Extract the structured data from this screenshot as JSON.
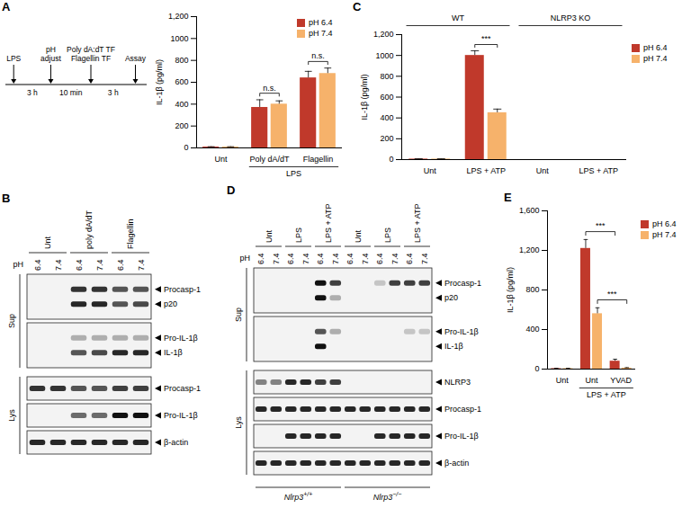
{
  "chart_data": [
    {
      "panel": "A",
      "type": "bar",
      "y_label": "IL-1β (pg/ml)",
      "protocol": {
        "events": [
          [
            "LPS"
          ],
          [
            "pH",
            "adjust"
          ],
          [
            "Poly dA:dT TF",
            "Flagellin TF"
          ],
          [
            "Assay"
          ]
        ],
        "intervals": [
          "3 h",
          "10 min",
          "3 h"
        ]
      },
      "categories": [
        "Unt",
        "Poly dA/dT",
        "Flagellin"
      ],
      "series": [
        {
          "name": "pH 6.4",
          "color": "#c0392b",
          "values": [
            8,
            370,
            640
          ],
          "errors": [
            3,
            70,
            60
          ]
        },
        {
          "name": "pH 7.4",
          "color": "#f6b26b",
          "values": [
            8,
            400,
            680
          ],
          "errors": [
            3,
            30,
            50
          ]
        }
      ],
      "ylim": [
        0,
        1200
      ],
      "yticks": [
        0,
        200,
        400,
        600,
        800,
        1000,
        {
          "value": 1200,
          "label": "1,200"
        }
      ],
      "groups": [
        {
          "label": "LPS",
          "categories": [
            1,
            2
          ],
          "position": "bottom"
        }
      ],
      "annotations": [
        {
          "text": "n.s.",
          "from": [
            1,
            0
          ],
          "to": [
            1,
            1
          ]
        },
        {
          "text": "n.s.",
          "from": [
            2,
            0
          ],
          "to": [
            2,
            1
          ]
        }
      ],
      "legend": "top-right"
    },
    {
      "panel": "C",
      "type": "bar",
      "y_label": "IL-1β (pg/ml)",
      "categories": [
        "Unt",
        "LPS + ATP",
        "Unt",
        "LPS + ATP"
      ],
      "series": [
        {
          "name": "pH 6.4",
          "color": "#c0392b",
          "values": [
            5,
            1000,
            0,
            0
          ],
          "errors": [
            3,
            45,
            0,
            0
          ]
        },
        {
          "name": "pH 7.4",
          "color": "#f6b26b",
          "values": [
            5,
            450,
            0,
            0
          ],
          "errors": [
            3,
            35,
            0,
            0
          ]
        }
      ],
      "ylim": [
        0,
        1200
      ],
      "yticks": [
        0,
        200,
        400,
        600,
        800,
        1000,
        {
          "value": 1200,
          "label": "1,200"
        }
      ],
      "groups": [
        {
          "label": "WT",
          "categories": [
            0,
            1
          ],
          "position": "top"
        },
        {
          "label": "NLRP3 KO",
          "categories": [
            2,
            3
          ],
          "position": "top"
        }
      ],
      "annotations": [
        {
          "text": "***",
          "from": [
            1,
            0
          ],
          "to": [
            1,
            1
          ]
        }
      ],
      "legend": "right"
    },
    {
      "panel": "E",
      "type": "bar",
      "y_label": "IL-1β (pg/ml)",
      "categories": [
        "Unt",
        "Unt",
        "YVAD"
      ],
      "series": [
        {
          "name": "pH 6.4",
          "color": "#c0392b",
          "values": [
            5,
            1220,
            80
          ],
          "errors": [
            3,
            90,
            20
          ]
        },
        {
          "name": "pH 7.4",
          "color": "#f6b26b",
          "values": [
            5,
            560,
            10
          ],
          "errors": [
            3,
            60,
            5
          ]
        }
      ],
      "ylim": [
        0,
        1600
      ],
      "yticks": [
        0,
        400,
        800,
        {
          "value": 1200,
          "label": "1,200"
        },
        {
          "value": 1600,
          "label": "1,600"
        }
      ],
      "groups": [
        {
          "label": "LPS + ATP",
          "categories": [
            1,
            2
          ],
          "position": "bottom"
        }
      ],
      "annotations": [
        {
          "text": "***",
          "from": [
            1,
            0
          ],
          "to": [
            2,
            0
          ]
        },
        {
          "text": "***",
          "from": [
            1,
            1
          ],
          "to": [
            2,
            1
          ]
        }
      ],
      "legend": "right"
    }
  ],
  "blots": [
    {
      "panel": "B",
      "row_label": "pH",
      "ph": [
        "6.4",
        "7.4",
        "6.4",
        "7.4",
        "6.4",
        "7.4"
      ],
      "treatments": [
        {
          "label": "Unt",
          "lanes": 2
        },
        {
          "label": "poly dA/dT",
          "lanes": 2
        },
        {
          "label": "Flagellin",
          "lanes": 2
        }
      ],
      "sections": [
        {
          "label": "Sup",
          "blots": [
            {
              "bands": [
                {
                  "label": "Procasp-1",
                  "intensity": [
                    0,
                    0,
                    0.85,
                    0.85,
                    0.7,
                    0.7
                  ]
                },
                {
                  "label": "p20",
                  "intensity": [
                    0,
                    0,
                    0.9,
                    0.9,
                    0.7,
                    0.75
                  ]
                }
              ]
            },
            {
              "bands": [
                {
                  "label": "Pro-IL-1β",
                  "intensity": [
                    0,
                    0,
                    0.3,
                    0.3,
                    0.3,
                    0.3
                  ]
                },
                {
                  "label": "IL-1β",
                  "intensity": [
                    0,
                    0,
                    0.7,
                    0.75,
                    0.9,
                    0.9
                  ]
                }
              ]
            }
          ]
        },
        {
          "label": "Lys",
          "blots": [
            {
              "bands": [
                {
                  "label": "Procasp-1",
                  "intensity": [
                    0.85,
                    0.85,
                    0.7,
                    0.7,
                    0.8,
                    0.8
                  ]
                }
              ]
            },
            {
              "bands": [
                {
                  "label": "Pro-IL-1β",
                  "intensity": [
                    0,
                    0,
                    0.6,
                    0.6,
                    1,
                    1
                  ]
                }
              ]
            },
            {
              "bands": [
                {
                  "label": "β-actin",
                  "intensity": [
                    0.9,
                    0.9,
                    0.9,
                    0.9,
                    0.9,
                    0.9
                  ]
                }
              ]
            }
          ]
        }
      ]
    },
    {
      "panel": "D",
      "row_label": "pH",
      "ph": [
        "6.4",
        "7.4",
        "6.4",
        "7.4",
        "6.4",
        "7.4",
        "6.4",
        "7.4",
        "6.4",
        "7.4",
        "6.4",
        "7.4"
      ],
      "treatments": [
        {
          "label": "Unt",
          "lanes": 2
        },
        {
          "label": "LPS",
          "lanes": 2
        },
        {
          "label": "LPS + ATP",
          "lanes": 2
        },
        {
          "label": "Unt",
          "lanes": 2
        },
        {
          "label": "LPS",
          "lanes": 2
        },
        {
          "label": "LPS + ATP",
          "lanes": 2
        }
      ],
      "sections": [
        {
          "label": "Sup",
          "blots": [
            {
              "bands": [
                {
                  "label": "Procasp-1",
                  "intensity": [
                    0,
                    0,
                    0,
                    0,
                    1,
                    0.8,
                    0,
                    0,
                    0.2,
                    0.8,
                    0.8,
                    0.8
                  ]
                },
                {
                  "label": "p20",
                  "intensity": [
                    0,
                    0,
                    0,
                    0,
                    1,
                    0.3,
                    0,
                    0,
                    0,
                    0,
                    0,
                    0
                  ]
                }
              ]
            },
            {
              "bands": [
                {
                  "label": "Pro-IL-1β",
                  "intensity": [
                    0,
                    0,
                    0,
                    0,
                    0.7,
                    0.3,
                    0,
                    0,
                    0,
                    0,
                    0.2,
                    0.2
                  ]
                },
                {
                  "label": "IL-1β",
                  "intensity": [
                    0,
                    0,
                    0,
                    0,
                    1,
                    0,
                    0,
                    0,
                    0,
                    0,
                    0,
                    0
                  ]
                }
              ]
            }
          ]
        },
        {
          "label": "Lys",
          "blots": [
            {
              "bands": [
                {
                  "label": "NLRP3",
                  "intensity": [
                    0.5,
                    0.5,
                    0.9,
                    0.9,
                    0.8,
                    0.8,
                    0,
                    0,
                    0,
                    0,
                    0,
                    0
                  ]
                }
              ]
            },
            {
              "bands": [
                {
                  "label": "Procasp-1",
                  "intensity": [
                    0.9,
                    0.9,
                    0.9,
                    0.9,
                    0.9,
                    0.9,
                    0.9,
                    0.9,
                    0.9,
                    0.9,
                    0.9,
                    0.9
                  ]
                }
              ]
            },
            {
              "bands": [
                {
                  "label": "Pro-IL-1β",
                  "intensity": [
                    0,
                    0,
                    0.9,
                    0.9,
                    0.9,
                    0.9,
                    0,
                    0,
                    0.9,
                    0.9,
                    0.9,
                    0.9
                  ]
                }
              ]
            },
            {
              "bands": [
                {
                  "label": "β-actin",
                  "intensity": [
                    0.9,
                    0.9,
                    0.9,
                    0.9,
                    0.9,
                    0.9,
                    0.9,
                    0.9,
                    0.9,
                    0.9,
                    0.9,
                    0.9
                  ]
                }
              ]
            }
          ]
        }
      ],
      "genotypes": [
        {
          "label": "Nlrp3",
          "superscript": "+/+",
          "lanes": 6
        },
        {
          "label": "Nlrp3",
          "superscript": "−/−",
          "lanes": 6
        }
      ]
    }
  ]
}
